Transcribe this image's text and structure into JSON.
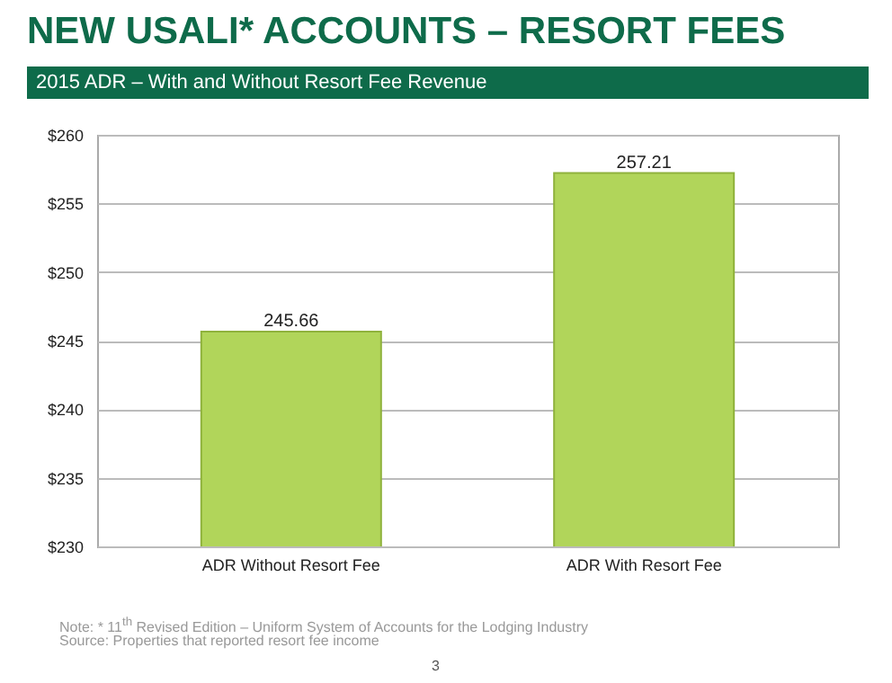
{
  "chart_data": {
    "type": "bar",
    "title": "NEW USALI* ACCOUNTS – RESORT FEES",
    "subtitle": "2015 ADR – With and Without Resort Fee Revenue",
    "categories": [
      "ADR Without Resort Fee",
      "ADR With Resort Fee"
    ],
    "values": [
      245.66,
      257.21
    ],
    "color": "#b1d55a",
    "data_labels": true,
    "ylim": [
      230,
      260
    ],
    "yticks": [
      {
        "value": 230,
        "label": "$230"
      },
      {
        "value": 235,
        "label": "$235"
      },
      {
        "value": 240,
        "label": "$240"
      },
      {
        "value": 245,
        "label": "$245"
      },
      {
        "value": 250,
        "label": "$250"
      },
      {
        "value": 255,
        "label": "$255"
      },
      {
        "value": 260,
        "label": "$260"
      }
    ],
    "grid": "y",
    "annotations": [
      "Note: * 11$^{th}$ Revised Edition – Uniform System of Accounts for the Lodging Industry",
      "Source: Properties that reported resort fee income",
      "3"
    ]
  }
}
